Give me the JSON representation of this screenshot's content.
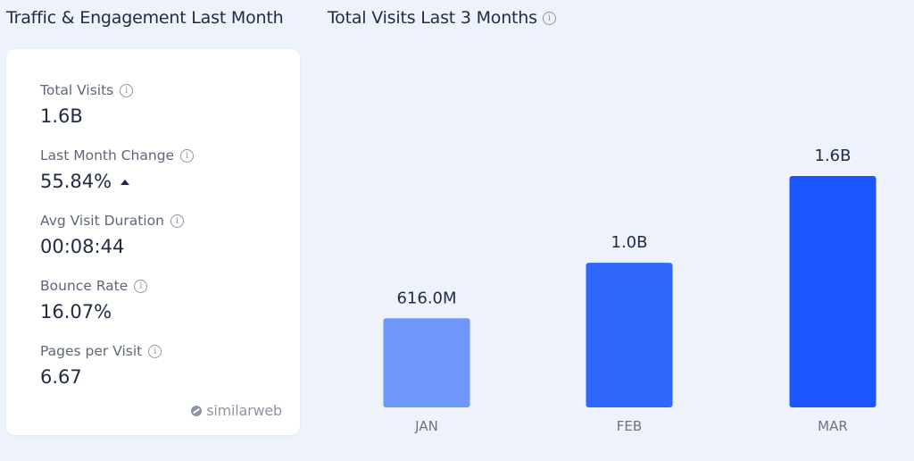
{
  "left_panel": {
    "title": "Traffic & Engagement Last Month",
    "metrics": [
      {
        "label": "Total Visits",
        "value": "1.6B",
        "info_icon": "info-icon"
      },
      {
        "label": "Last Month Change",
        "value": "55.84%",
        "trend": "up",
        "info_icon": "info-icon"
      },
      {
        "label": "Avg Visit Duration",
        "value": "00:08:44",
        "info_icon": "info-icon"
      },
      {
        "label": "Bounce Rate",
        "value": "16.07%",
        "info_icon": "info-icon"
      },
      {
        "label": "Pages per Visit",
        "value": "6.67",
        "info_icon": "info-icon"
      }
    ],
    "brand": "similarweb"
  },
  "chart_data": {
    "type": "bar",
    "title": "Total Visits Last 3 Months",
    "categories": [
      "JAN",
      "FEB",
      "MAR"
    ],
    "values": [
      616000000,
      1000000000,
      1600000000
    ],
    "data_labels": [
      "616.0M",
      "1.0B",
      "1.6B"
    ],
    "colors": [
      "#6f96fb",
      "#2e68fd",
      "#1c55fd"
    ],
    "ylim": [
      0,
      1600000000
    ],
    "grid": false,
    "legend": false
  }
}
